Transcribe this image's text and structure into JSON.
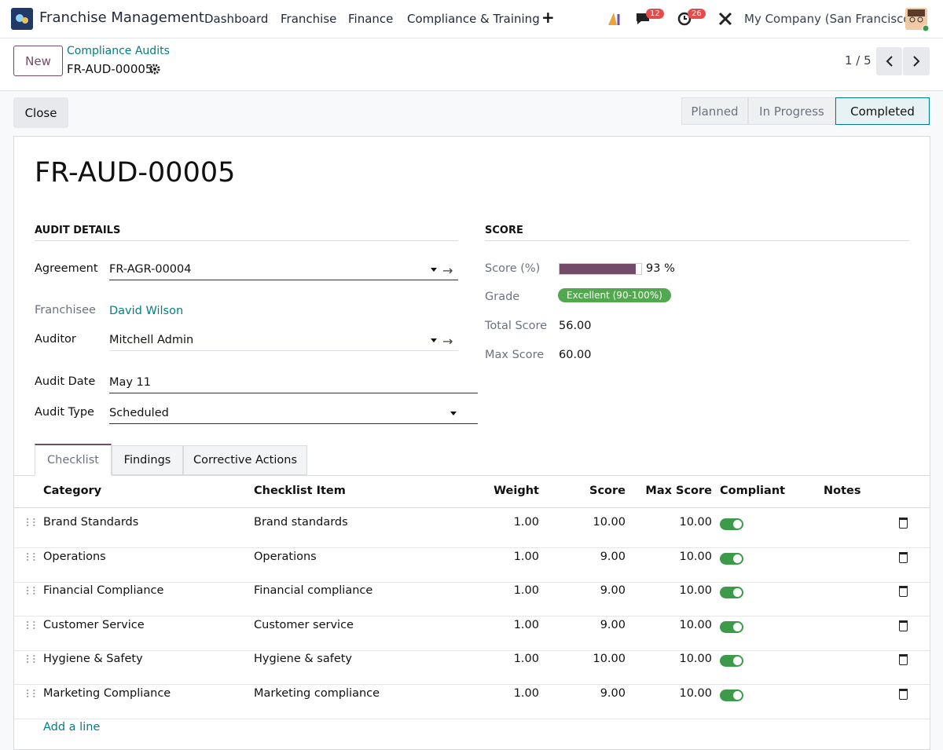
{
  "navbar": {
    "app": "Franchise Management",
    "menu": [
      "Dashboard",
      "Franchise",
      "Finance",
      "Compliance & Training"
    ],
    "messages_badge": 12,
    "activity_badge": 26,
    "company": "My Company (San Francisco)"
  },
  "control": {
    "new": "New",
    "breadcrumb": "Compliance Audits",
    "record": "FR-AUD-00005",
    "pager": "1 / 5"
  },
  "status": {
    "close": "Close",
    "stages": [
      "Planned",
      "In Progress",
      "Completed"
    ],
    "current": 2
  },
  "form": {
    "title": "FR-AUD-00005",
    "audit_details": {
      "heading": "AUDIT DETAILS",
      "fields": [
        {
          "label": "Agreement",
          "value": "FR-AGR-00004"
        },
        {
          "label": "Franchisee",
          "value": "David Wilson"
        },
        {
          "label": "Auditor",
          "value": "Mitchell Admin"
        },
        {
          "label": "Audit Date",
          "value": "May 11"
        },
        {
          "label": "Audit Type",
          "value": "Scheduled"
        }
      ]
    },
    "score": {
      "heading": "SCORE",
      "score": {
        "label": "Score (%)",
        "value": 93,
        "unit": "%"
      },
      "grade": {
        "label": "Grade",
        "value": "Excellent (90-100%)"
      },
      "total": {
        "label": "Total Score",
        "value": "56.00"
      },
      "max": {
        "label": "Max Score",
        "value": "60.00"
      }
    }
  },
  "tabs": {
    "items": [
      "Checklist",
      "Findings",
      "Corrective Actions"
    ],
    "active": 0
  },
  "table": {
    "columns": [
      "Category",
      "Checklist Item",
      "Weight",
      "Score",
      "Max Score",
      "Compliant",
      "Notes"
    ],
    "rows": [
      {
        "category": "Brand Standards",
        "item": "Brand standards",
        "weight": "1.00",
        "score": "10.00",
        "max_score": "10.00",
        "compliant": true
      },
      {
        "category": "Operations",
        "item": "Operations",
        "weight": "1.00",
        "score": "9.00",
        "max_score": "10.00",
        "compliant": true
      },
      {
        "category": "Financial Compliance",
        "item": "Financial compliance",
        "weight": "1.00",
        "score": "9.00",
        "max_score": "10.00",
        "compliant": true
      },
      {
        "category": "Customer Service",
        "item": "Customer service",
        "weight": "1.00",
        "score": "9.00",
        "max_score": "10.00",
        "compliant": true
      },
      {
        "category": "Hygiene & Safety",
        "item": "Hygiene & safety",
        "weight": "1.00",
        "score": "10.00",
        "max_score": "10.00",
        "compliant": true
      },
      {
        "category": "Marketing Compliance",
        "item": "Marketing compliance",
        "weight": "1.00",
        "score": "9.00",
        "max_score": "10.00",
        "compliant": true
      }
    ],
    "add_line": "Add a line"
  }
}
